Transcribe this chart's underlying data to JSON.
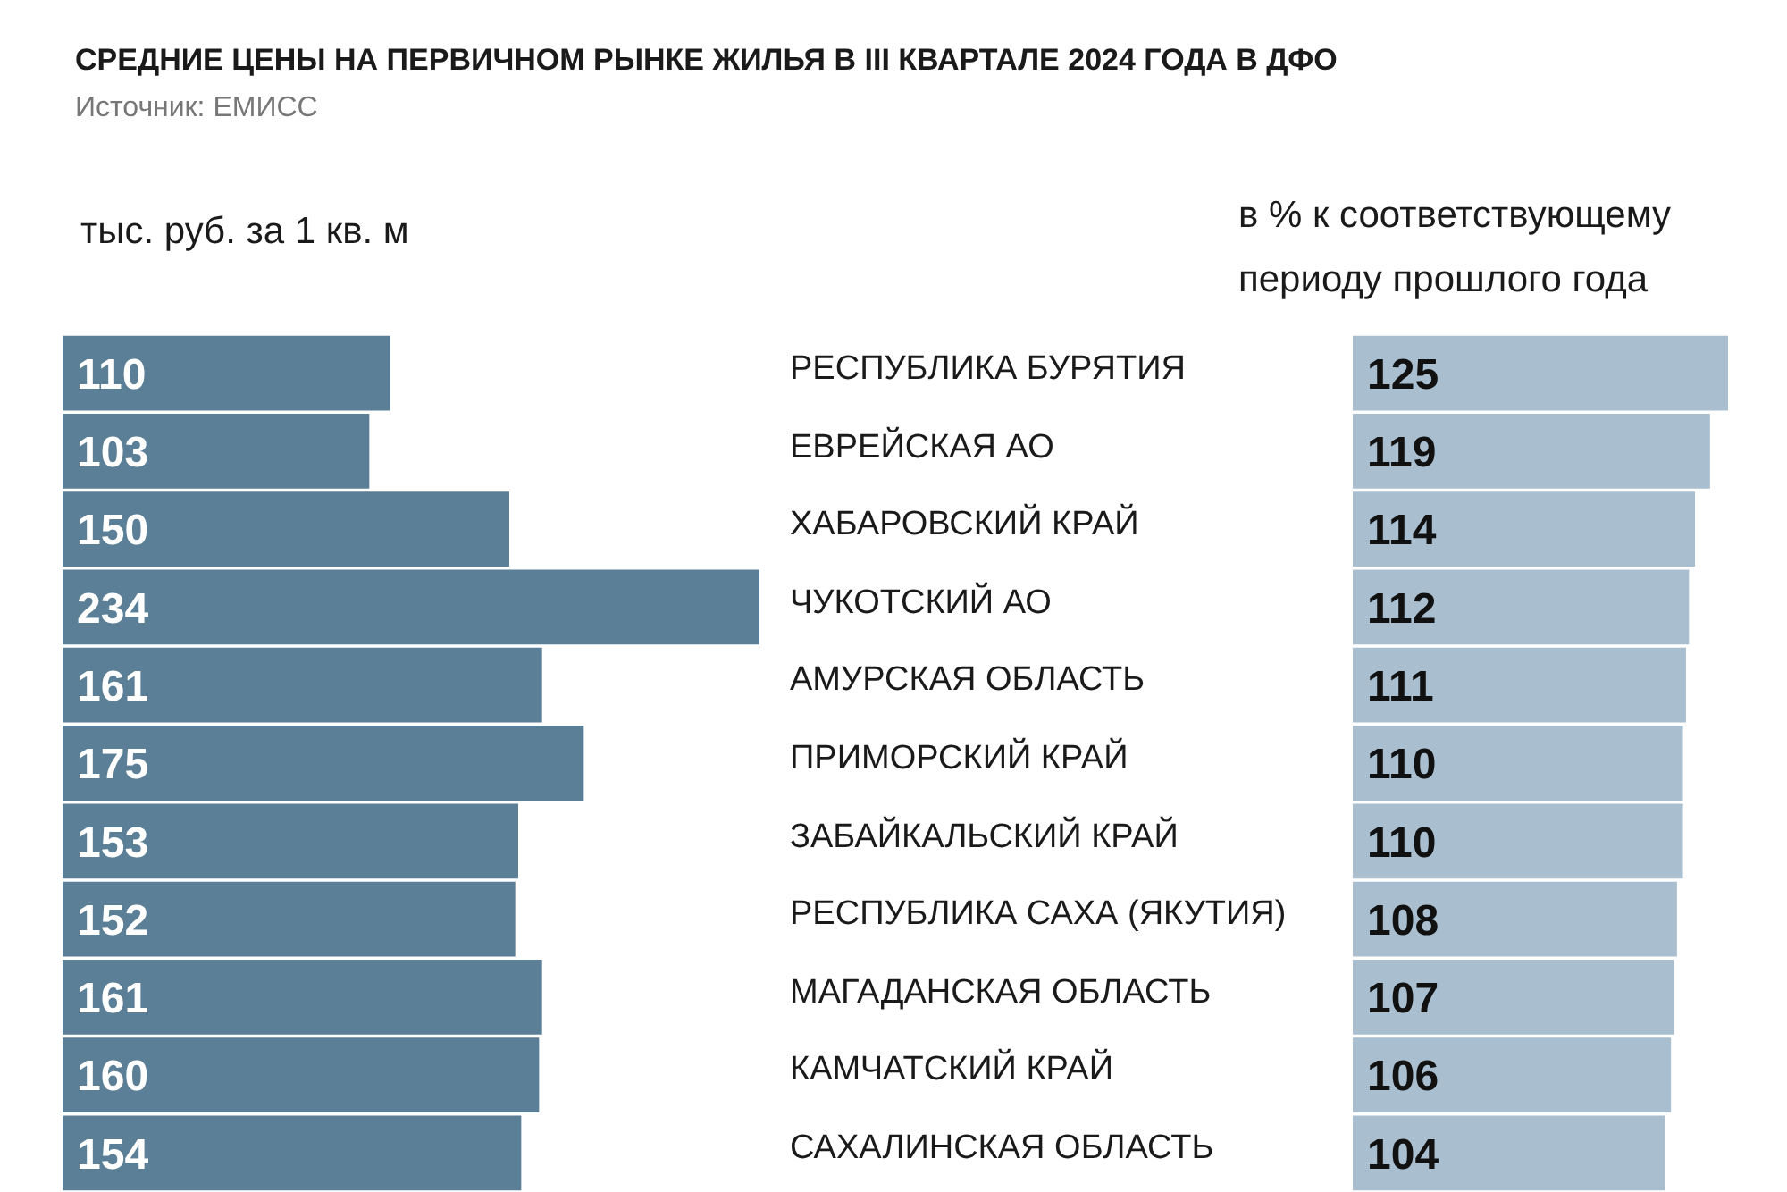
{
  "chart_data": [
    {
      "type": "bar",
      "orientation": "horizontal",
      "relative": false,
      "title": "СРЕДНИЕ ЦЕНЫ НА ПЕРВИЧНОМ РЫНКЕ ЖИЛЬЯ В III КВАРТАЛЕ 2024 ГОДА В ДФО",
      "annotations": [
        "Источник: ЕМИСС"
      ],
      "xlabel": "тыс. руб. за 1 кв. м",
      "categories": [
        "РЕСПУБЛИКА БУРЯТИЯ",
        "ЕВРЕЙСКАЯ АО",
        "ХАБАРОВСКИЙ КРАЙ",
        "ЧУКОТСКИЙ АО",
        "АМУРСКАЯ ОБЛАСТЬ",
        "ПРИМОРСКИЙ КРАЙ",
        "ЗАБАЙКАЛЬСКИЙ КРАЙ",
        "РЕСПУБЛИКА САХА (ЯКУТИЯ)",
        "МАГАДАНСКАЯ ОБЛАСТЬ",
        "КАМЧАТСКИЙ КРАЙ",
        "САХАЛИНСКАЯ ОБЛАСТЬ"
      ],
      "values": [
        110,
        103,
        150,
        234,
        161,
        175,
        153,
        152,
        161,
        160,
        154
      ],
      "color": "#5a7f96",
      "data_labels": true
    },
    {
      "type": "bar",
      "orientation": "horizontal",
      "xlabel": "в % к соответствующему периоду прошлого года",
      "categories": [
        null,
        null,
        null,
        null,
        null,
        null,
        null,
        null,
        null,
        null,
        null
      ],
      "values": [
        125,
        119,
        114,
        112,
        111,
        110,
        110,
        108,
        107,
        106,
        104
      ],
      "color": "#a9bfcf",
      "data_labels": true
    }
  ]
}
